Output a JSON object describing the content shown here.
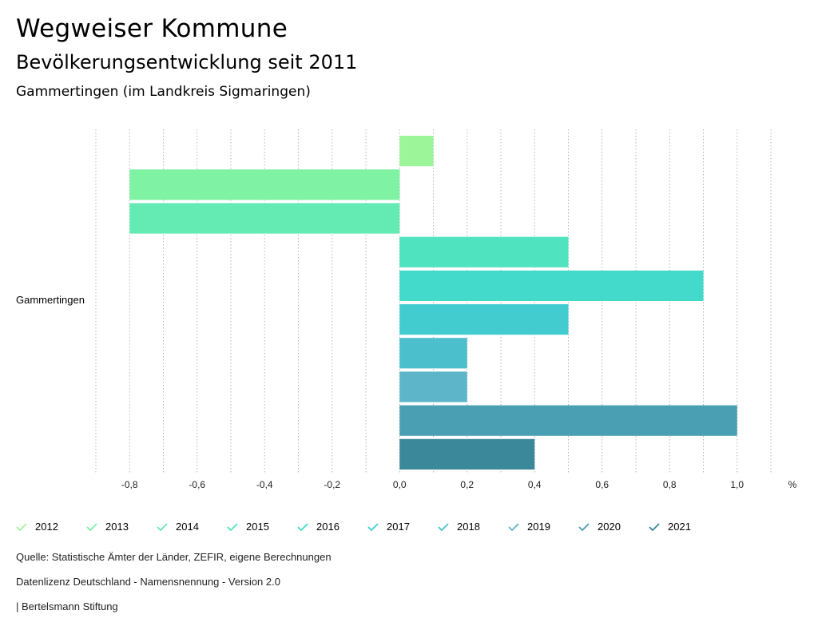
{
  "header": {
    "title": "Wegweiser Kommune",
    "subtitle": "Bevölkerungsentwicklung seit 2011",
    "region": "Gammertingen (im Landkreis Sigmaringen)"
  },
  "chart_data": {
    "type": "bar",
    "orientation": "horizontal",
    "categories": [
      "Gammertingen"
    ],
    "series": [
      {
        "name": "2012",
        "values": [
          0.1
        ],
        "color": "#9df59a"
      },
      {
        "name": "2013",
        "values": [
          -0.8
        ],
        "color": "#7ff2a3"
      },
      {
        "name": "2014",
        "values": [
          -0.8
        ],
        "color": "#63ebb3"
      },
      {
        "name": "2015",
        "values": [
          0.5
        ],
        "color": "#4fe3c0"
      },
      {
        "name": "2016",
        "values": [
          0.9
        ],
        "color": "#43d9cb"
      },
      {
        "name": "2017",
        "values": [
          0.5
        ],
        "color": "#42ccd0"
      },
      {
        "name": "2018",
        "values": [
          0.2
        ],
        "color": "#4bbfcc"
      },
      {
        "name": "2019",
        "values": [
          0.2
        ],
        "color": "#5db5c9"
      },
      {
        "name": "2020",
        "values": [
          1.0
        ],
        "color": "#4a9fb2"
      },
      {
        "name": "2021",
        "values": [
          0.4
        ],
        "color": "#3a889a"
      }
    ],
    "xlim": [
      -0.9,
      1.1
    ],
    "xticks": [
      "-0,8",
      "-0,6",
      "-0,4",
      "-0,2",
      "0,0",
      "0,2",
      "0,4",
      "0,6",
      "0,8",
      "1,0"
    ],
    "xtick_values": [
      -0.8,
      -0.6,
      -0.4,
      -0.2,
      0.0,
      0.2,
      0.4,
      0.6,
      0.8,
      1.0
    ],
    "unit": "%",
    "grid": "vertical-dotted",
    "legend_position": "bottom"
  },
  "footer": {
    "source": "Quelle: Statistische Ämter der Länder, ZEFIR, eigene Berechnungen",
    "license": "Datenlizenz Deutschland - Namensnennung - Version 2.0",
    "publisher": "| Bertelsmann Stiftung"
  }
}
